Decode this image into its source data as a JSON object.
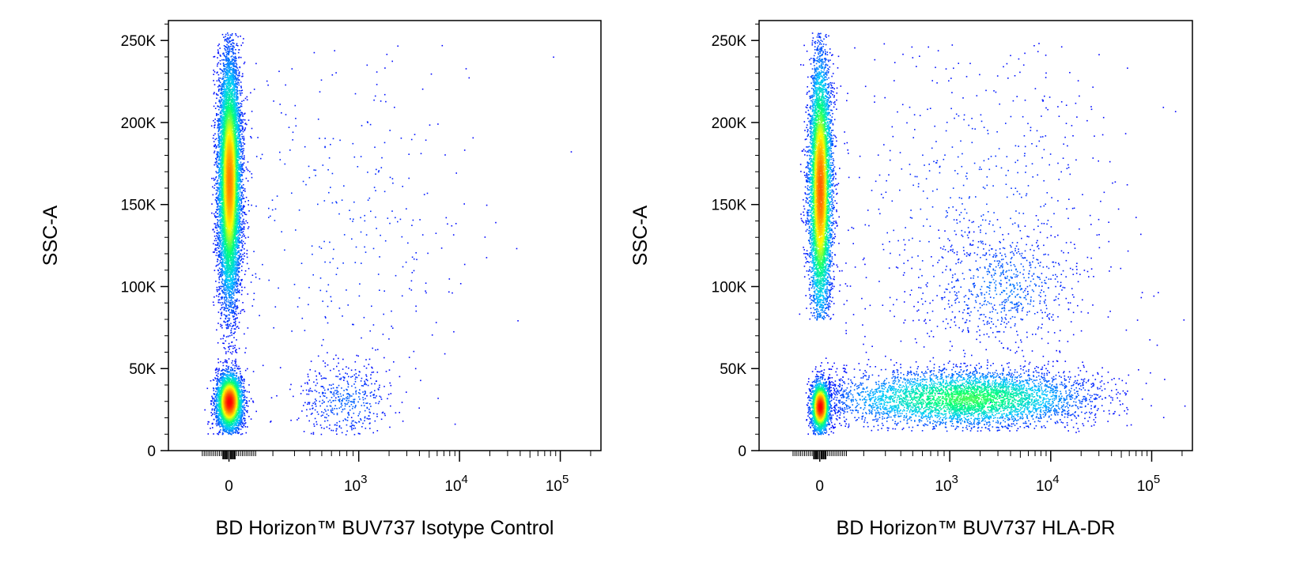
{
  "chart_data": [
    {
      "type": "scatter",
      "subtype": "flow-cytometry-density-dot-plot",
      "title": "",
      "xlabel": "BD Horizon™ BUV737 Isotype Control",
      "ylabel": "SSC-A",
      "x_scale": "biexponential",
      "ylim": [
        0,
        262144
      ],
      "y_ticks": [
        {
          "value": 0,
          "label": "0"
        },
        {
          "value": 50000,
          "label": "50K"
        },
        {
          "value": 100000,
          "label": "100K"
        },
        {
          "value": 150000,
          "label": "150K"
        },
        {
          "value": 200000,
          "label": "200K"
        },
        {
          "value": 250000,
          "label": "250K"
        }
      ],
      "x_ticks": [
        {
          "value": 0,
          "label": "0"
        },
        {
          "value": 1000,
          "label": "10",
          "exponent": "3"
        },
        {
          "value": 10000,
          "label": "10",
          "exponent": "4"
        },
        {
          "value": 100000,
          "label": "10",
          "exponent": "5"
        }
      ],
      "color_scale": [
        "#0000ff",
        "#00c8ff",
        "#00ff7a",
        "#ffff00",
        "#ff8000",
        "#ff0000"
      ],
      "populations": [
        {
          "x_center": 0,
          "x_spread": 30,
          "y_center": 165000,
          "y_spread": 38000,
          "y_range": [
            60000,
            255000
          ],
          "count": 9000,
          "peak_density": 0.8
        },
        {
          "x_center": 0,
          "x_spread": 35,
          "y_center": 30000,
          "y_spread": 9000,
          "y_range": [
            10000,
            60000
          ],
          "count": 3600,
          "peak_density": 1.0
        },
        {
          "x_center": 800,
          "x_spread": 1.6,
          "y_center": 30000,
          "y_spread": 12000,
          "y_range": [
            10000,
            60000
          ],
          "count": 450,
          "peak_density": 0.1
        },
        {
          "x_center": 600,
          "x_spread": 5,
          "y_center": 140000,
          "y_spread": 60000,
          "y_range": [
            10000,
            250000
          ],
          "count": 400,
          "peak_density": 0.05
        }
      ]
    },
    {
      "type": "scatter",
      "subtype": "flow-cytometry-density-dot-plot",
      "title": "",
      "xlabel": "BD Horizon™ BUV737 HLA-DR",
      "ylabel": "SSC-A",
      "x_scale": "biexponential",
      "ylim": [
        0,
        262144
      ],
      "y_ticks": [
        {
          "value": 0,
          "label": "0"
        },
        {
          "value": 50000,
          "label": "50K"
        },
        {
          "value": 100000,
          "label": "100K"
        },
        {
          "value": 150000,
          "label": "150K"
        },
        {
          "value": 200000,
          "label": "200K"
        },
        {
          "value": 250000,
          "label": "250K"
        }
      ],
      "x_ticks": [
        {
          "value": 0,
          "label": "0"
        },
        {
          "value": 1000,
          "label": "10",
          "exponent": "3"
        },
        {
          "value": 10000,
          "label": "10",
          "exponent": "4"
        },
        {
          "value": 100000,
          "label": "10",
          "exponent": "5"
        }
      ],
      "color_scale": [
        "#0000ff",
        "#00c8ff",
        "#00ff7a",
        "#ffff00",
        "#ff8000",
        "#ff0000"
      ],
      "populations": [
        {
          "x_center": 0,
          "x_spread": 30,
          "y_center": 160000,
          "y_spread": 40000,
          "y_range": [
            80000,
            255000
          ],
          "count": 6500,
          "peak_density": 0.85
        },
        {
          "x_center": 0,
          "x_spread": 25,
          "y_center": 27000,
          "y_spread": 8000,
          "y_range": [
            10000,
            55000
          ],
          "count": 2000,
          "peak_density": 1.0
        },
        {
          "x_center": 1500,
          "x_spread": 4,
          "y_center": 32000,
          "y_spread": 9000,
          "y_range": [
            12000,
            55000
          ],
          "count": 4500,
          "peak_density": 0.45
        },
        {
          "x_center": 3500,
          "x_spread": 2.4,
          "y_center": 100000,
          "y_spread": 18000,
          "y_range": [
            60000,
            150000
          ],
          "count": 600,
          "peak_density": 0.12
        },
        {
          "x_center": 2000,
          "x_spread": 5,
          "y_center": 140000,
          "y_spread": 60000,
          "y_range": [
            10000,
            250000
          ],
          "count": 700,
          "peak_density": 0.06
        }
      ]
    }
  ]
}
